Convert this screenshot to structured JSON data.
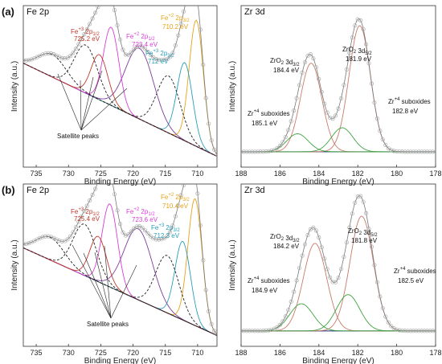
{
  "chart_data": [
    {
      "panel_label": "(a)",
      "title": "Fe 2p",
      "type": "line",
      "xlabel": "Binding Energy (eV)",
      "ylabel": "Intensity (a.u.)",
      "xlim": [
        737,
        707
      ],
      "xticks": [
        "735",
        "730",
        "725",
        "720",
        "715",
        "710"
      ],
      "x_reversed": true,
      "peaks": [
        {
          "center": 710.2,
          "amp": 0.84,
          "width": 1.1,
          "color": "#e8a317",
          "dashed": false
        },
        {
          "center": 712.0,
          "amp": 0.52,
          "width": 1.2,
          "color": "#2a9db8",
          "dashed": false
        },
        {
          "center": 714.5,
          "amp": 0.38,
          "width": 1.8,
          "color": "#222222",
          "dashed": true
        },
        {
          "center": 719.0,
          "amp": 0.47,
          "width": 2.2,
          "color": "#7a3f9a",
          "dashed": false
        },
        {
          "center": 723.4,
          "amp": 0.52,
          "width": 1.2,
          "color": "#d63fd6",
          "dashed": false
        },
        {
          "center": 725.2,
          "amp": 0.3,
          "width": 1.3,
          "color": "#c0392b",
          "dashed": false
        },
        {
          "center": 727.3,
          "amp": 0.32,
          "width": 1.8,
          "color": "#222222",
          "dashed": true
        },
        {
          "center": 732.5,
          "amp": 0.15,
          "width": 2.2,
          "color": "#222222",
          "dashed": true
        }
      ],
      "background": {
        "left": 0.66,
        "right": 0.04,
        "color": "#1a2a6c"
      },
      "annotations": [
        {
          "text": "Fe",
          "sup": "+3",
          "rest": " 2p",
          "sub": "1/2",
          "value": "725.2 eV",
          "color": "#c0392b"
        },
        {
          "text": "Fe",
          "sup": "+2",
          "rest": " 2p",
          "sub": "1/2",
          "value": "723.4 eV",
          "color": "#d63fd6"
        },
        {
          "text": "Fe",
          "sup": "+2",
          "rest": " 2p",
          "sub": "3/2",
          "value": "710.2 eV",
          "color": "#e8a317"
        },
        {
          "text": "Fe",
          "sup": "+3",
          "rest": " 2p",
          "sub": "3/2",
          "value": "712 eV",
          "color": "#2a9db8"
        },
        {
          "text": "Satellite peaks",
          "sup": "",
          "rest": "",
          "sub": "",
          "value": "",
          "color": "#111111"
        }
      ]
    },
    {
      "panel_label": "",
      "title": "Zr 3d",
      "type": "line",
      "xlabel": "Binding Energy (eV)",
      "ylabel": "Intensity (a.u.)",
      "xlim": [
        188,
        178
      ],
      "xticks": [
        "188",
        "186",
        "184",
        "182",
        "180",
        "178"
      ],
      "x_reversed": true,
      "peaks": [
        {
          "center": 181.9,
          "amp": 0.84,
          "width": 0.55,
          "color": "#c97a6a",
          "dashed": false
        },
        {
          "center": 184.4,
          "amp": 0.59,
          "width": 0.55,
          "color": "#c97a6a",
          "dashed": false
        },
        {
          "center": 182.8,
          "amp": 0.16,
          "width": 0.55,
          "color": "#3fa33f",
          "dashed": false
        },
        {
          "center": 185.1,
          "amp": 0.12,
          "width": 0.55,
          "color": "#3fa33f",
          "dashed": false
        }
      ],
      "background": {
        "left": 0.07,
        "right": 0.07,
        "color": "#1a2a6c"
      },
      "annotations": [
        {
          "text": "ZrO",
          "sub2": "2",
          "rest": " 3d",
          "sub": "3/2",
          "value": "184.4 eV",
          "color": "#111111"
        },
        {
          "text": "ZrO",
          "sub2": "2",
          "rest": " 3d",
          "sub": "5/2",
          "value": "181.9 eV",
          "color": "#111111"
        },
        {
          "text": "Zr",
          "sup": "+4",
          "rest": " suboxides",
          "value": "185.1 eV",
          "color": "#111111"
        },
        {
          "text": "Zr",
          "sup": "+4",
          "rest": " suboxides",
          "value": "182.8 eV",
          "color": "#111111"
        }
      ]
    },
    {
      "panel_label": "(b)",
      "title": "Fe 2p",
      "type": "line",
      "xlabel": "Binding Energy (eV)",
      "ylabel": "Intensity (a.u.)",
      "xlim": [
        737,
        707
      ],
      "xticks": [
        "735",
        "730",
        "725",
        "720",
        "715",
        "710"
      ],
      "x_reversed": true,
      "peaks": [
        {
          "center": 710.4,
          "amp": 0.84,
          "width": 1.1,
          "color": "#e8a317",
          "dashed": false
        },
        {
          "center": 712.3,
          "amp": 0.52,
          "width": 1.2,
          "color": "#2a9db8",
          "dashed": false
        },
        {
          "center": 714.7,
          "amp": 0.38,
          "width": 1.8,
          "color": "#222222",
          "dashed": true
        },
        {
          "center": 719.2,
          "amp": 0.47,
          "width": 2.2,
          "color": "#7a3f9a",
          "dashed": false
        },
        {
          "center": 723.6,
          "amp": 0.55,
          "width": 1.2,
          "color": "#d63fd6",
          "dashed": false
        },
        {
          "center": 725.4,
          "amp": 0.3,
          "width": 1.3,
          "color": "#c0392b",
          "dashed": false
        },
        {
          "center": 727.5,
          "amp": 0.34,
          "width": 1.8,
          "color": "#222222",
          "dashed": true
        },
        {
          "center": 732.8,
          "amp": 0.15,
          "width": 2.2,
          "color": "#222222",
          "dashed": true
        }
      ],
      "background": {
        "left": 0.62,
        "right": 0.04,
        "color": "#1a2a6c"
      },
      "annotations": [
        {
          "text": "Fe",
          "sup": "+3",
          "rest": " 2p",
          "sub": "1/2",
          "value": "725.4 eV",
          "color": "#c0392b"
        },
        {
          "text": "Fe",
          "sup": "+2",
          "rest": " 2p",
          "sub": "1/2",
          "value": "723.6 eV",
          "color": "#d63fd6"
        },
        {
          "text": "Fe",
          "sup": "+2",
          "rest": " 2p",
          "sub": "3/2",
          "value": "710.4 eV",
          "color": "#e8a317"
        },
        {
          "text": "Fe",
          "sup": "+3",
          "rest": " 2p",
          "sub": "3/2",
          "value": "712.3 eV",
          "color": "#2a9db8"
        },
        {
          "text": "Satellite peaks",
          "sup": "",
          "rest": "",
          "sub": "",
          "value": "",
          "color": "#111111"
        }
      ]
    },
    {
      "panel_label": "",
      "title": "Zr 3d",
      "type": "line",
      "xlabel": "Binding Energy (eV)",
      "ylabel": "Intensity (a.u.)",
      "xlim": [
        188,
        178
      ],
      "xticks": [
        "188",
        "186",
        "184",
        "182",
        "180",
        "178"
      ],
      "x_reversed": true,
      "peaks": [
        {
          "center": 181.8,
          "amp": 0.76,
          "width": 0.6,
          "color": "#c97a6a",
          "dashed": false
        },
        {
          "center": 184.2,
          "amp": 0.58,
          "width": 0.6,
          "color": "#c97a6a",
          "dashed": false
        },
        {
          "center": 182.5,
          "amp": 0.24,
          "width": 0.6,
          "color": "#3fa33f",
          "dashed": false
        },
        {
          "center": 184.9,
          "amp": 0.18,
          "width": 0.6,
          "color": "#3fa33f",
          "dashed": false
        }
      ],
      "background": {
        "left": 0.07,
        "right": 0.07,
        "color": "#1a2a6c"
      },
      "annotations": [
        {
          "text": "ZrO",
          "sub2": "2",
          "rest": " 3d",
          "sub": "3/2",
          "value": "184.2 eV",
          "color": "#111111"
        },
        {
          "text": "ZrO",
          "sub2": "2",
          "rest": " 3d",
          "sub": "5/2",
          "value": "181.8 eV",
          "color": "#111111"
        },
        {
          "text": "Zr",
          "sup": "+4",
          "rest": " suboxides",
          "value": "184.9 eV",
          "color": "#111111"
        },
        {
          "text": "Zr",
          "sup": "+4",
          "rest": " suboxides",
          "value": "182.5 eV",
          "color": "#111111"
        }
      ]
    }
  ]
}
